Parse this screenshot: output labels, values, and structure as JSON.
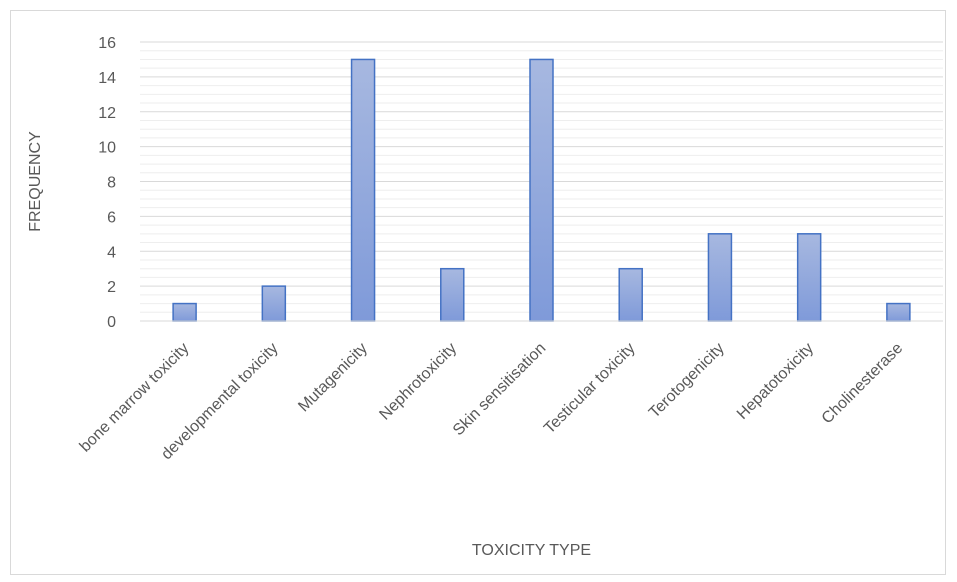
{
  "chart_data": {
    "type": "bar",
    "title": "",
    "xlabel": "TOXICITY TYPE",
    "ylabel": "FREQUENCY",
    "categories": [
      "bone marrow toxicity",
      "developmental toxicity",
      "Mutagenicity",
      "Nephrotoxicity",
      "Skin sensitisation",
      "Testicular toxicity",
      "Terotogenicity",
      "Hepatotoxicity",
      "Cholinesterase"
    ],
    "values": [
      1,
      2,
      15,
      3,
      15,
      3,
      5,
      5,
      1
    ],
    "ylim": [
      0,
      16
    ],
    "y_major_ticks": [
      0,
      2,
      4,
      6,
      8,
      10,
      12,
      14,
      16
    ],
    "y_minor_step": 0.5,
    "grid": true,
    "legend": "none",
    "colors": {
      "bar_fill_top": "#a7b8e0",
      "bar_fill_bottom": "#7f9ad9",
      "bar_stroke": "#4472c4",
      "major_grid": "#d9d9d9",
      "minor_grid": "#eeeeee",
      "text": "#595959"
    }
  }
}
